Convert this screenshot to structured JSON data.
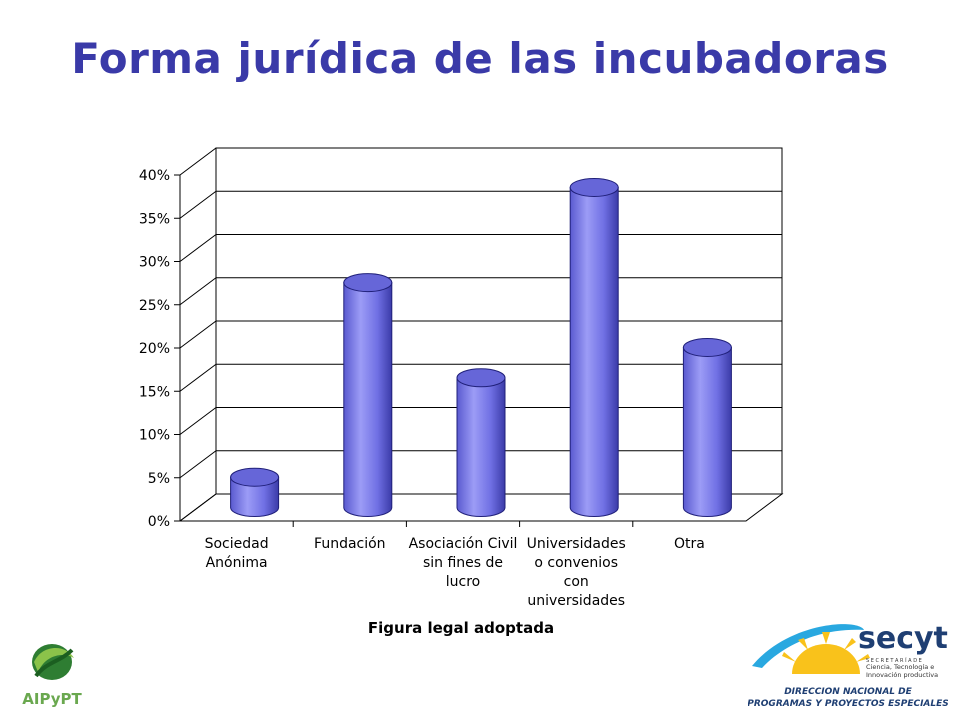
{
  "slide": {
    "title": "Forma jurídica de las incubadoras"
  },
  "chart_data": {
    "type": "bar",
    "style": "3d-cylinder",
    "categories": [
      [
        "Sociedad",
        "Anónima"
      ],
      [
        "Fundación"
      ],
      [
        "Asociación Civil",
        "sin fines de",
        "lucro"
      ],
      [
        "Universidades",
        "o convenios",
        "con",
        "universidades"
      ],
      [
        "Otra"
      ]
    ],
    "values": [
      3.5,
      26,
      15,
      37,
      18.5
    ],
    "yticks": [
      "0%",
      "5%",
      "10%",
      "15%",
      "20%",
      "25%",
      "30%",
      "35%",
      "40%"
    ],
    "ylim": [
      0,
      40
    ],
    "xlabel": "Figura legal adoptada",
    "ylabel": "",
    "grid": true,
    "bar_color": "#7b7bea"
  },
  "logos": {
    "left": {
      "name": "AIPyPT",
      "icon": "aipypt-logo"
    },
    "right": {
      "name": "secyt",
      "tagline": [
        "S E C R E T A R Í A  D E",
        "Ciencia, Tecnología e",
        "Innovación productiva"
      ],
      "footer": [
        "DIRECCION NACIONAL DE",
        "PROGRAMAS Y PROYECTOS ESPECIALES"
      ]
    }
  }
}
